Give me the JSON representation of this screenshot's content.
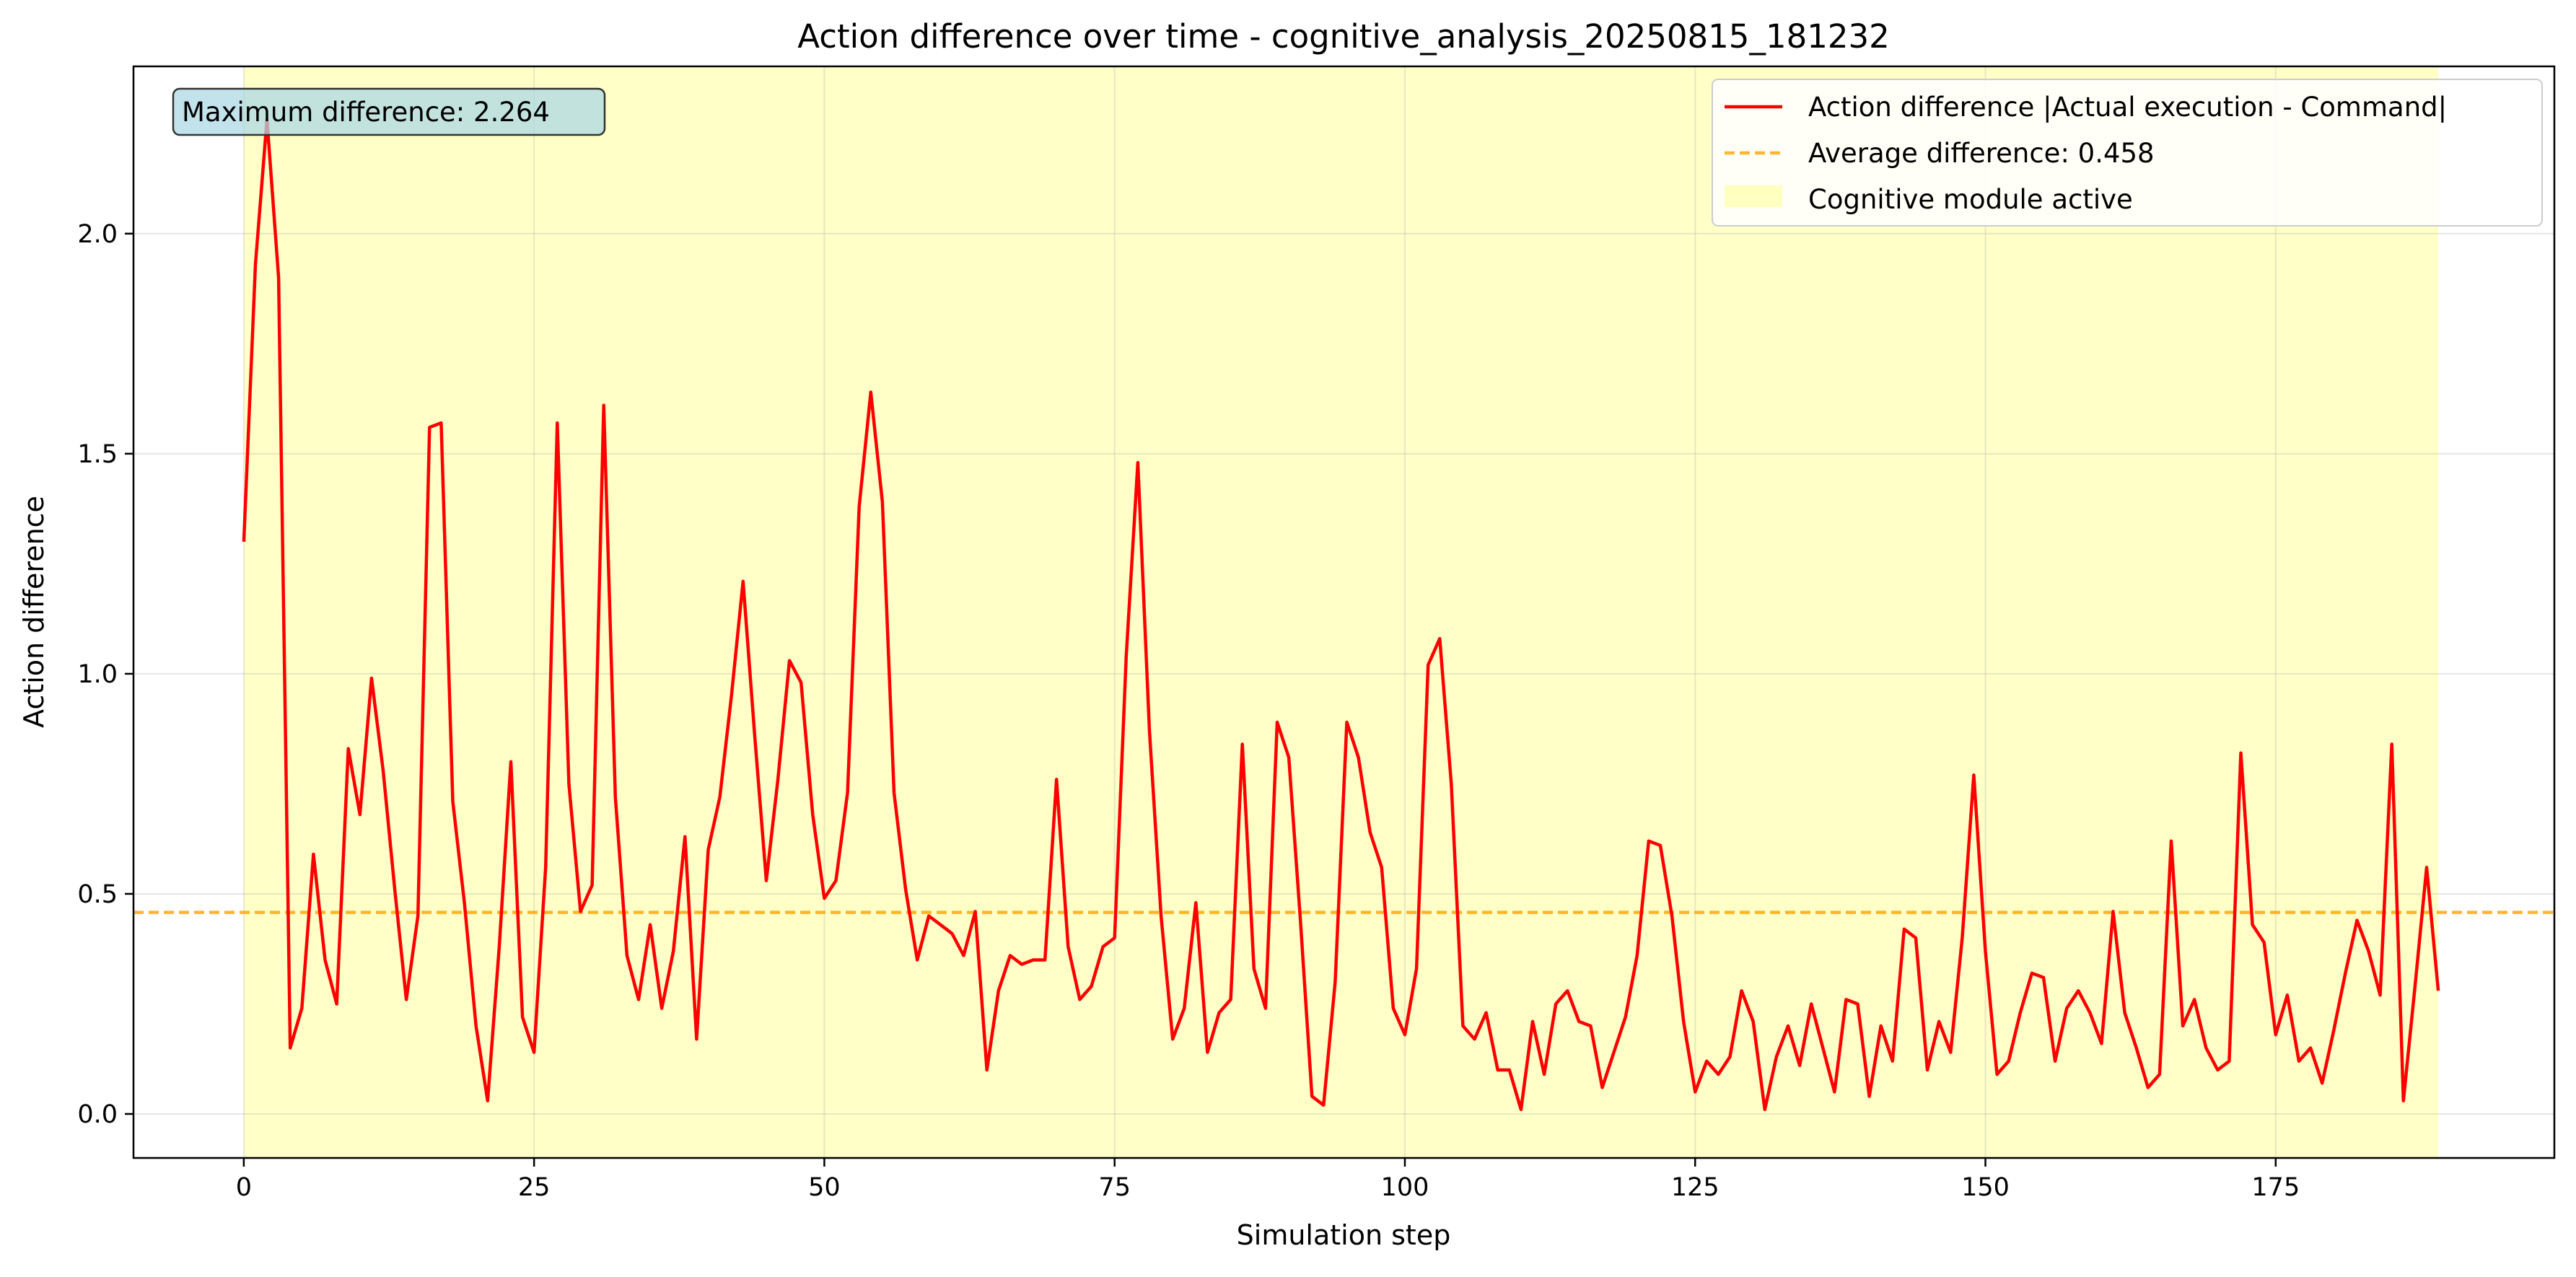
{
  "chart_data": {
    "type": "line",
    "title": "Action difference over time - cognitive_analysis_20250815_181232",
    "xlabel": "Simulation step",
    "ylabel": "Action difference",
    "xlim": [
      -9.5,
      199
    ],
    "ylim": [
      -0.1,
      2.38
    ],
    "x_ticks": [
      0,
      25,
      50,
      75,
      100,
      125,
      150,
      175
    ],
    "y_ticks": [
      0.0,
      0.5,
      1.0,
      1.5,
      2.0
    ],
    "x_tick_labels": [
      "0",
      "25",
      "50",
      "75",
      "100",
      "125",
      "150",
      "175"
    ],
    "y_tick_labels": [
      "0.0",
      "0.5",
      "1.0",
      "1.5",
      "2.0"
    ],
    "grid": true,
    "legend_position": "top-right",
    "series": [
      {
        "name": "Action difference |Actual execution - Command|",
        "color": "#ff0000",
        "values": [
          1.3,
          1.93,
          2.26,
          1.9,
          0.15,
          0.24,
          0.59,
          0.35,
          0.25,
          0.83,
          0.68,
          0.99,
          0.78,
          0.51,
          0.26,
          0.45,
          1.56,
          1.57,
          0.71,
          0.48,
          0.2,
          0.03,
          0.38,
          0.8,
          0.22,
          0.14,
          0.56,
          1.57,
          0.75,
          0.46,
          0.52,
          1.61,
          0.72,
          0.36,
          0.26,
          0.43,
          0.24,
          0.37,
          0.63,
          0.17,
          0.6,
          0.72,
          0.95,
          1.21,
          0.86,
          0.53,
          0.76,
          1.03,
          0.98,
          0.68,
          0.49,
          0.53,
          0.73,
          1.38,
          1.64,
          1.39,
          0.73,
          0.51,
          0.35,
          0.45,
          0.43,
          0.41,
          0.36,
          0.46,
          0.1,
          0.28,
          0.36,
          0.34,
          0.35,
          0.35,
          0.76,
          0.38,
          0.26,
          0.29,
          0.38,
          0.4,
          1.04,
          1.48,
          0.87,
          0.45,
          0.17,
          0.24,
          0.48,
          0.14,
          0.23,
          0.26,
          0.84,
          0.33,
          0.24,
          0.89,
          0.81,
          0.44,
          0.04,
          0.02,
          0.3,
          0.89,
          0.81,
          0.64,
          0.56,
          0.24,
          0.18,
          0.33,
          1.02,
          1.08,
          0.75,
          0.2,
          0.17,
          0.23,
          0.1,
          0.1,
          0.01,
          0.21,
          0.09,
          0.25,
          0.28,
          0.21,
          0.2,
          0.06,
          0.14,
          0.22,
          0.36,
          0.62,
          0.61,
          0.45,
          0.21,
          0.05,
          0.12,
          0.09,
          0.13,
          0.28,
          0.21,
          0.01,
          0.13,
          0.2,
          0.11,
          0.25,
          0.15,
          0.05,
          0.26,
          0.25,
          0.04,
          0.2,
          0.12,
          0.42,
          0.4,
          0.1,
          0.21,
          0.14,
          0.4,
          0.77,
          0.37,
          0.09,
          0.12,
          0.23,
          0.32,
          0.31,
          0.12,
          0.24,
          0.28,
          0.23,
          0.16,
          0.46,
          0.23,
          0.15,
          0.06,
          0.09,
          0.62,
          0.2,
          0.26,
          0.15,
          0.1,
          0.12,
          0.82,
          0.43,
          0.39,
          0.18,
          0.27,
          0.12,
          0.15,
          0.07,
          0.19,
          0.32,
          0.44,
          0.37,
          0.27,
          0.84,
          0.03,
          0.29,
          0.56,
          0.28
        ]
      },
      {
        "name": "Average difference: 0.458",
        "color": "#ffa500",
        "value": 0.458
      },
      {
        "name": "Cognitive module active",
        "color": "#ffff99",
        "x_start": 0,
        "x_end": 189
      }
    ],
    "annotation": {
      "text": "Maximum difference: 2.264",
      "box_color": "#add8e6"
    }
  }
}
